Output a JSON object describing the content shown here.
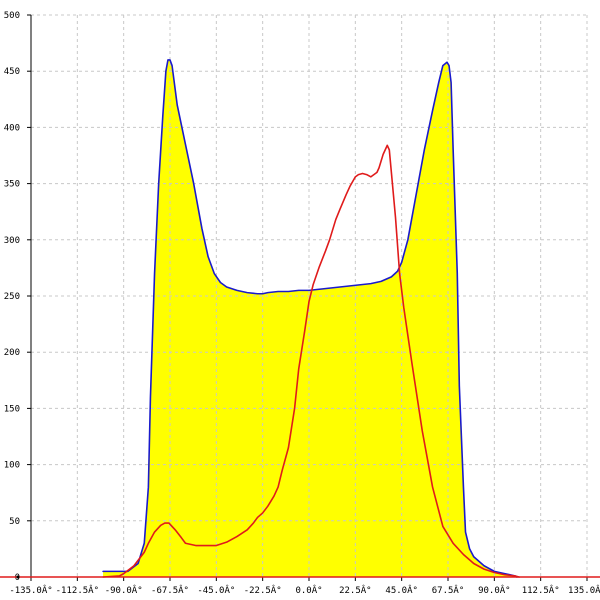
{
  "chart_data": {
    "type": "area",
    "title": "",
    "xlabel": "",
    "ylabel": "",
    "xlim": [
      -135,
      135
    ],
    "ylim": [
      0,
      500
    ],
    "grid": true,
    "legend": "none",
    "x_tick_values": [
      -135,
      -112.5,
      -90,
      -67.5,
      -45,
      -22.5,
      0,
      22.5,
      45,
      67.5,
      90,
      112.5,
      135
    ],
    "x_tick_labels": [
      "-135.0Â°",
      "-112.5Â°",
      "-90.0Â°",
      "-67.5Â°",
      "-45.0Â°",
      "-22.5Â°",
      "0.0Â°",
      "22.5Â°",
      "45.0Â°",
      "67.5Â°",
      "90.0Â°",
      "112.5Â°",
      "135.0Â°"
    ],
    "y_tick_values": [
      0,
      50,
      100,
      150,
      200,
      250,
      300,
      350,
      400,
      450,
      500
    ],
    "y_tick_labels": [
      "0",
      "50",
      "100",
      "150",
      "200",
      "250",
      "300",
      "350",
      "400",
      "450",
      "500"
    ],
    "series": [
      {
        "color": "#1a1acc",
        "fill": "#ffff00",
        "x": [
          -100,
          -93,
          -88,
          -83,
          -80,
          -78,
          -77,
          -75,
          -73,
          -71,
          -69.5,
          -68.5,
          -67.5,
          -66.5,
          -64,
          -60,
          -56,
          -52,
          -49,
          -46,
          -43,
          -40,
          -35,
          -30,
          -25,
          -22.5,
          -20,
          -15,
          -10,
          -5,
          0,
          5,
          10,
          15,
          20,
          25,
          30,
          35,
          40,
          43,
          45,
          48,
          52,
          56,
          60,
          63,
          65,
          67,
          68,
          69,
          70,
          72,
          73,
          75,
          76,
          78,
          80,
          85,
          90,
          95,
          100,
          101
        ],
        "y": [
          5,
          5,
          5,
          12,
          30,
          80,
          160,
          270,
          350,
          410,
          450,
          460,
          460,
          455,
          420,
          385,
          350,
          310,
          285,
          270,
          262,
          258,
          255,
          253,
          252,
          252,
          253,
          254,
          254,
          255,
          255,
          256,
          257,
          258,
          259,
          260,
          261,
          263,
          267,
          272,
          280,
          300,
          340,
          380,
          415,
          440,
          455,
          458,
          455,
          440,
          380,
          270,
          170,
          80,
          40,
          25,
          18,
          10,
          5,
          3,
          1,
          0
        ]
      },
      {
        "color": "#e01b1b",
        "x": [
          -100,
          -92,
          -90,
          -85,
          -80,
          -78,
          -75,
          -72,
          -70,
          -68,
          -67.5,
          -65,
          -62,
          -60,
          -55,
          -50,
          -45,
          -40,
          -35,
          -30,
          -27,
          -25,
          -22.5,
          -20,
          -17,
          -15,
          -13,
          -10,
          -7,
          -5,
          -2,
          0,
          2,
          5,
          8,
          10,
          13,
          15,
          18,
          20,
          22.5,
          24,
          26,
          28,
          30,
          33,
          34,
          35,
          36,
          37,
          38,
          39,
          40,
          42,
          44,
          46,
          48,
          50,
          55,
          60,
          65,
          70,
          75,
          80,
          85,
          90,
          95,
          100,
          102
        ],
        "y": [
          0,
          1,
          3,
          10,
          22,
          30,
          40,
          46,
          48,
          48,
          47,
          42,
          35,
          30,
          28,
          28,
          28,
          31,
          36,
          42,
          48,
          53,
          57,
          63,
          72,
          80,
          95,
          115,
          150,
          185,
          220,
          245,
          260,
          276,
          290,
          300,
          318,
          327,
          340,
          348,
          356,
          358,
          359,
          358,
          356,
          360,
          364,
          370,
          376,
          380,
          384,
          380,
          360,
          320,
          270,
          240,
          215,
          190,
          130,
          80,
          45,
          30,
          20,
          12,
          7,
          4,
          2,
          1,
          0
        ]
      }
    ]
  }
}
